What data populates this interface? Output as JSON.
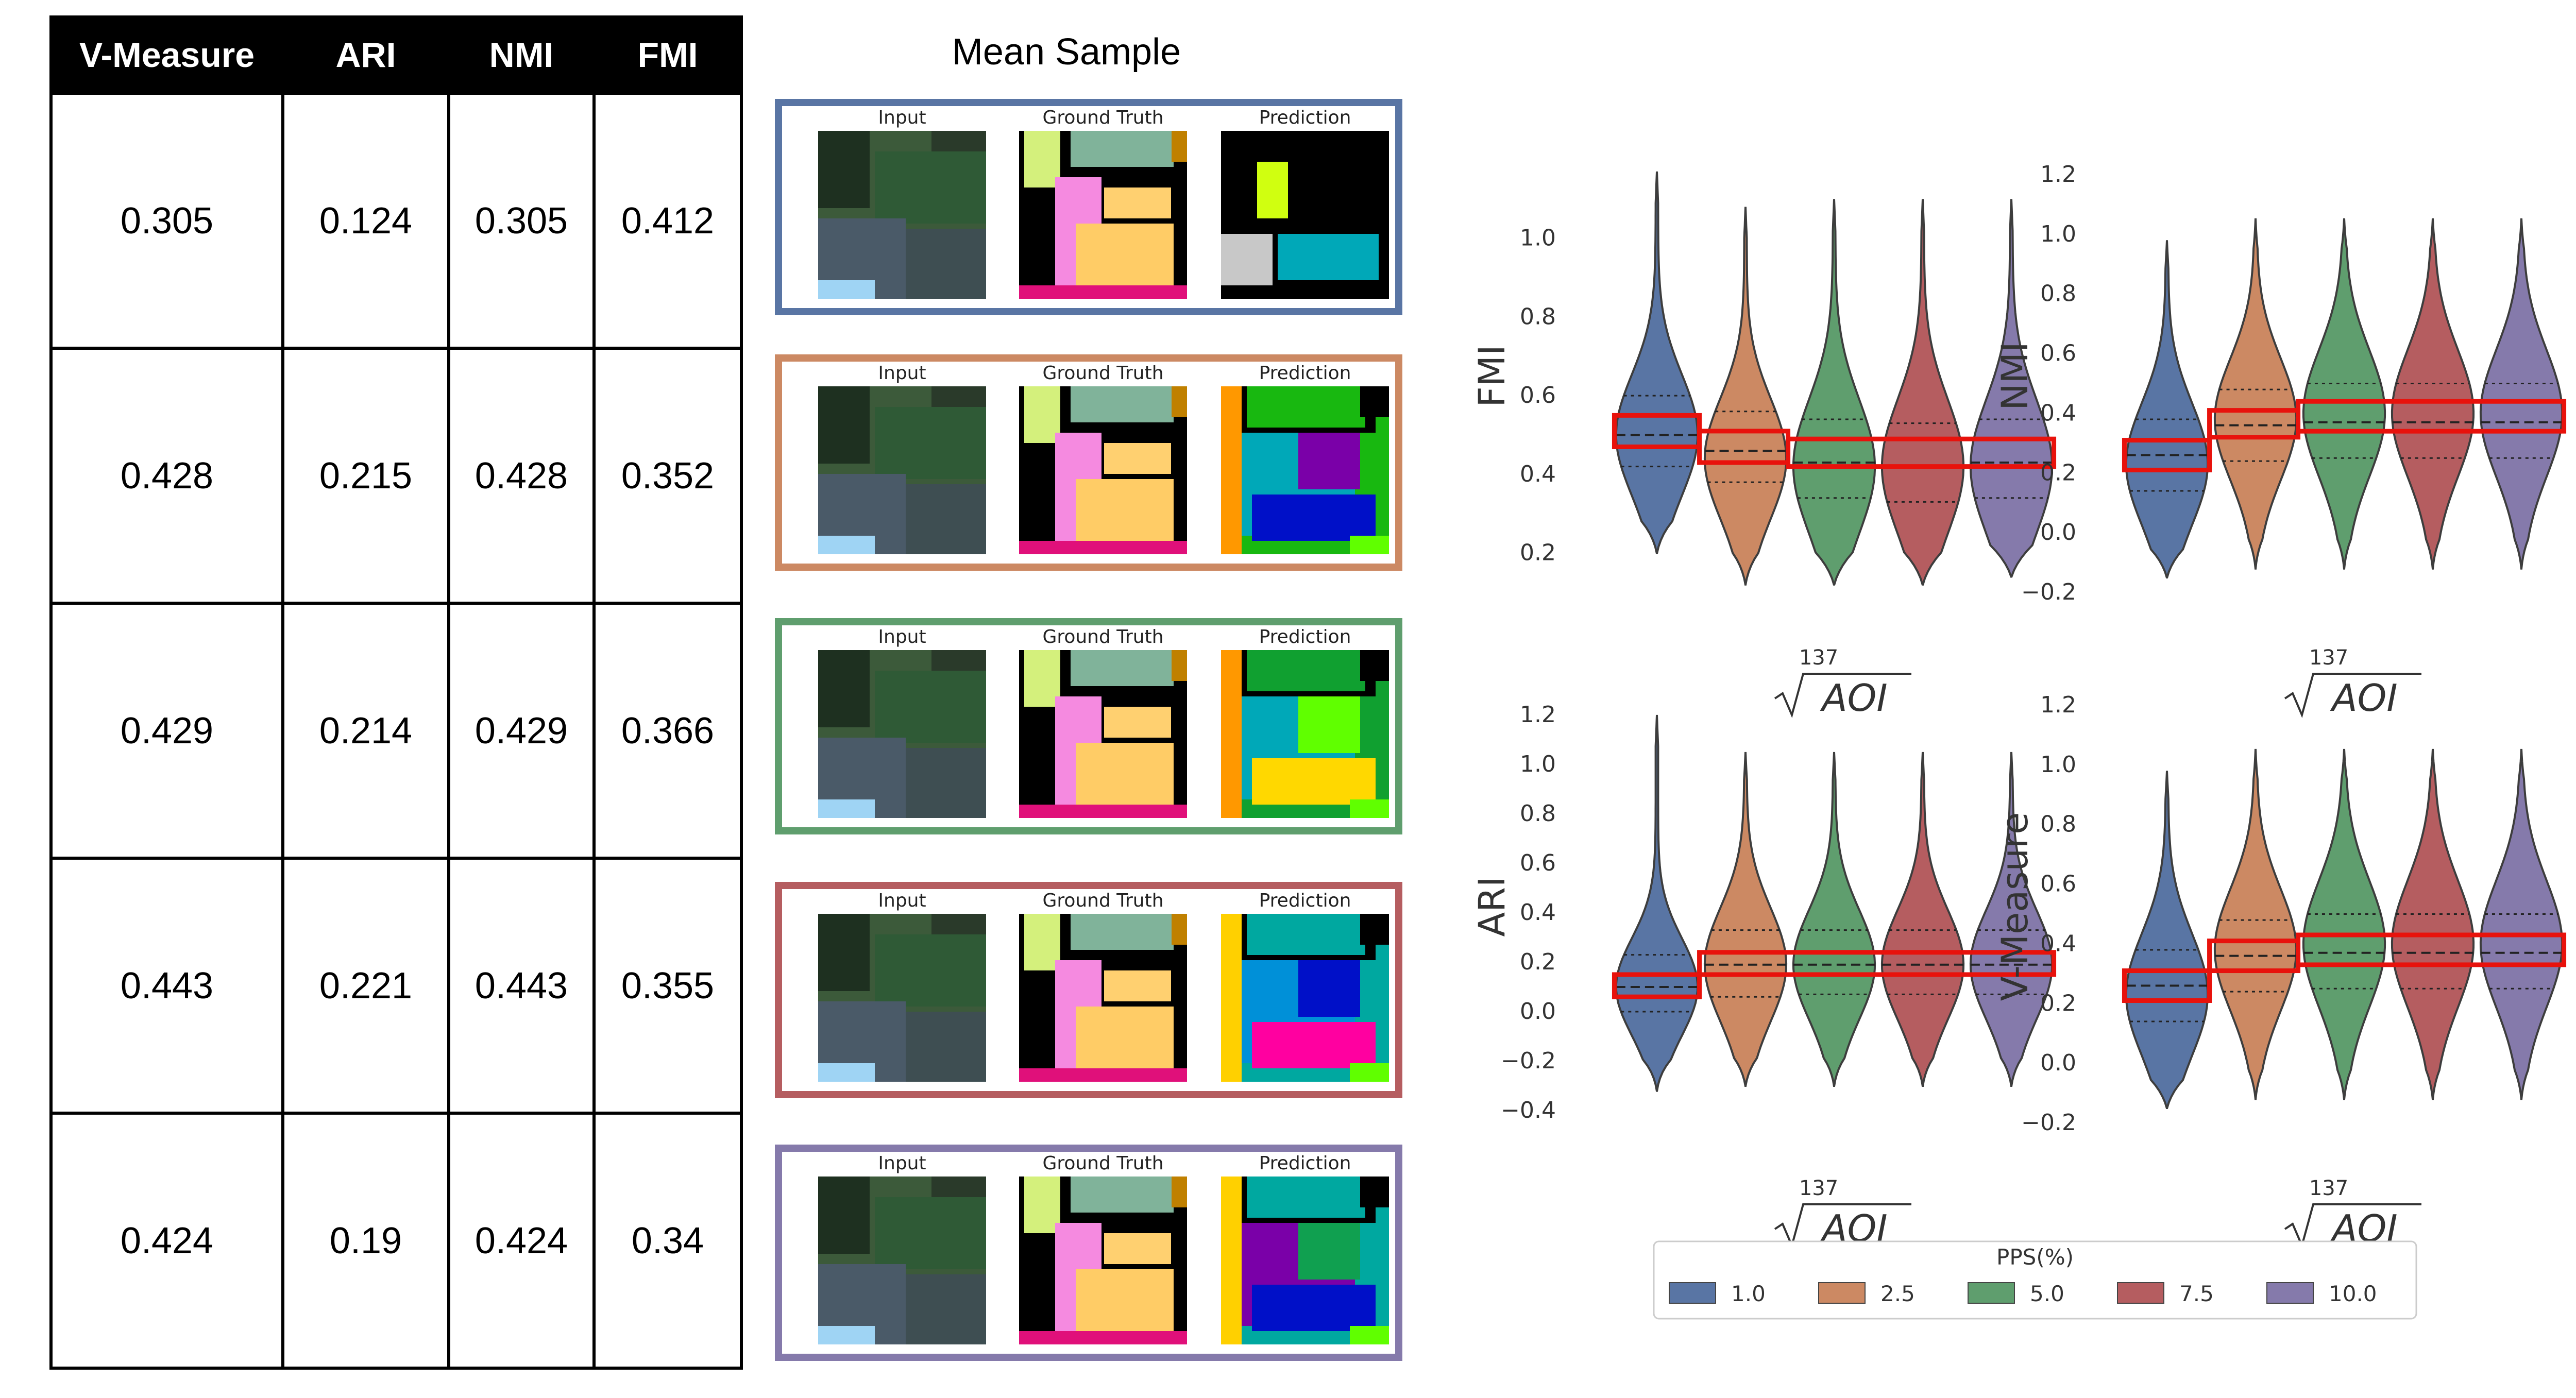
{
  "table": {
    "headers": [
      "V-Measure",
      "ARI",
      "NMI",
      "FMI"
    ],
    "rows": [
      [
        "0.305",
        "0.124",
        "0.305",
        "0.412"
      ],
      [
        "0.428",
        "0.215",
        "0.428",
        "0.352"
      ],
      [
        "0.429",
        "0.214",
        "0.429",
        "0.366"
      ],
      [
        "0.443",
        "0.221",
        "0.443",
        "0.355"
      ],
      [
        "0.424",
        "0.19",
        "0.424",
        "0.34"
      ]
    ]
  },
  "mean_sample": {
    "title": "Mean Sample",
    "panel_labels": [
      "Input",
      "Ground Truth",
      "Prediction"
    ],
    "border_colors": [
      "#5975a4",
      "#cc8963",
      "#5f9e6e",
      "#b55d60",
      "#857aab"
    ]
  },
  "colors": {
    "highlight": "#e8120c",
    "palette": [
      "#5975a4",
      "#cc8963",
      "#5f9e6e",
      "#b55d60",
      "#857aab"
    ]
  },
  "chart_data": [
    {
      "type": "violin",
      "ylabel": "FMI",
      "xlabel_index": "137",
      "xlabel_radicand": "AOI",
      "ylim": [
        0.1,
        1.2
      ],
      "yticks": [
        "0.2",
        "0.4",
        "0.6",
        "0.8",
        "1.0"
      ],
      "ytick_values": [
        0.2,
        0.4,
        0.6,
        0.8,
        1.0
      ],
      "series": [
        {
          "name": "1.0",
          "min": 0.2,
          "max": 1.17,
          "q1": 0.42,
          "median": 0.5,
          "q3": 0.6,
          "mode": 0.5
        },
        {
          "name": "2.5",
          "min": 0.12,
          "max": 1.08,
          "q1": 0.38,
          "median": 0.46,
          "q3": 0.56,
          "mode": 0.44
        },
        {
          "name": "5.0",
          "min": 0.12,
          "max": 1.1,
          "q1": 0.34,
          "median": 0.43,
          "q3": 0.54,
          "mode": 0.42
        },
        {
          "name": "7.5",
          "min": 0.12,
          "max": 1.1,
          "q1": 0.33,
          "median": 0.42,
          "q3": 0.53,
          "mode": 0.42
        },
        {
          "name": "10.0",
          "min": 0.14,
          "max": 1.1,
          "q1": 0.34,
          "median": 0.43,
          "q3": 0.54,
          "mode": 0.42
        }
      ],
      "highlight_ranges": [
        [
          0.47,
          0.55
        ],
        [
          0.43,
          0.51
        ],
        [
          0.42,
          0.49
        ]
      ]
    },
    {
      "type": "violin",
      "ylabel": "NMI",
      "xlabel_index": "137",
      "xlabel_radicand": "AOI",
      "ylim": [
        -0.2,
        1.25
      ],
      "yticks": [
        "−0.2",
        "0.0",
        "0.2",
        "0.4",
        "0.6",
        "0.8",
        "1.0",
        "1.2"
      ],
      "ytick_values": [
        -0.2,
        0.0,
        0.2,
        0.4,
        0.6,
        0.8,
        1.0,
        1.2
      ],
      "series": [
        {
          "name": "1.0",
          "min": -0.15,
          "max": 0.98,
          "q1": 0.14,
          "median": 0.26,
          "q3": 0.38,
          "mode": 0.23
        },
        {
          "name": "2.5",
          "min": -0.12,
          "max": 1.05,
          "q1": 0.24,
          "median": 0.36,
          "q3": 0.48,
          "mode": 0.38
        },
        {
          "name": "5.0",
          "min": -0.12,
          "max": 1.05,
          "q1": 0.25,
          "median": 0.37,
          "q3": 0.5,
          "mode": 0.4
        },
        {
          "name": "7.5",
          "min": -0.12,
          "max": 1.05,
          "q1": 0.25,
          "median": 0.37,
          "q3": 0.5,
          "mode": 0.4
        },
        {
          "name": "10.0",
          "min": -0.12,
          "max": 1.05,
          "q1": 0.25,
          "median": 0.37,
          "q3": 0.5,
          "mode": 0.4
        }
      ],
      "highlight_ranges": [
        [
          0.21,
          0.31
        ],
        [
          0.32,
          0.41
        ],
        [
          0.34,
          0.44
        ]
      ]
    },
    {
      "type": "violin",
      "ylabel": "ARI",
      "xlabel_index": "137",
      "xlabel_radicand": "AOI",
      "ylim": [
        -0.45,
        1.3
      ],
      "yticks": [
        "−0.4",
        "−0.2",
        "0.0",
        "0.2",
        "0.4",
        "0.6",
        "0.8",
        "1.0",
        "1.2"
      ],
      "ytick_values": [
        -0.4,
        -0.2,
        0.0,
        0.2,
        0.4,
        0.6,
        0.8,
        1.0,
        1.2
      ],
      "series": [
        {
          "name": "1.0",
          "min": -0.32,
          "max": 1.2,
          "q1": 0.0,
          "median": 0.1,
          "q3": 0.23,
          "mode": 0.1
        },
        {
          "name": "2.5",
          "min": -0.3,
          "max": 1.05,
          "q1": 0.06,
          "median": 0.19,
          "q3": 0.33,
          "mode": 0.19
        },
        {
          "name": "5.0",
          "min": -0.3,
          "max": 1.05,
          "q1": 0.07,
          "median": 0.19,
          "q3": 0.33,
          "mode": 0.19
        },
        {
          "name": "7.5",
          "min": -0.3,
          "max": 1.05,
          "q1": 0.07,
          "median": 0.19,
          "q3": 0.33,
          "mode": 0.19
        },
        {
          "name": "10.0",
          "min": -0.3,
          "max": 1.05,
          "q1": 0.07,
          "median": 0.19,
          "q3": 0.33,
          "mode": 0.19
        }
      ],
      "highlight_ranges": [
        [
          0.06,
          0.15
        ],
        [
          0.15,
          0.24
        ]
      ]
    },
    {
      "type": "violin",
      "ylabel": "V-Measure",
      "xlabel_index": "137",
      "xlabel_radicand": "AOI",
      "ylim": [
        -0.2,
        1.25
      ],
      "yticks": [
        "−0.2",
        "0.0",
        "0.2",
        "0.4",
        "0.6",
        "0.8",
        "1.0",
        "1.2"
      ],
      "ytick_values": [
        -0.2,
        0.0,
        0.2,
        0.4,
        0.6,
        0.8,
        1.0,
        1.2
      ],
      "series": [
        {
          "name": "1.0",
          "min": -0.15,
          "max": 0.98,
          "q1": 0.14,
          "median": 0.26,
          "q3": 0.38,
          "mode": 0.23
        },
        {
          "name": "2.5",
          "min": -0.12,
          "max": 1.05,
          "q1": 0.24,
          "median": 0.36,
          "q3": 0.48,
          "mode": 0.38
        },
        {
          "name": "5.0",
          "min": -0.12,
          "max": 1.05,
          "q1": 0.25,
          "median": 0.37,
          "q3": 0.5,
          "mode": 0.4
        },
        {
          "name": "7.5",
          "min": -0.12,
          "max": 1.05,
          "q1": 0.25,
          "median": 0.37,
          "q3": 0.5,
          "mode": 0.4
        },
        {
          "name": "10.0",
          "min": -0.12,
          "max": 1.05,
          "q1": 0.25,
          "median": 0.37,
          "q3": 0.5,
          "mode": 0.4
        }
      ],
      "highlight_ranges": [
        [
          0.21,
          0.31
        ],
        [
          0.31,
          0.41
        ],
        [
          0.33,
          0.43
        ]
      ]
    }
  ],
  "legend": {
    "title": "PPS(%)",
    "labels": [
      "1.0",
      "2.5",
      "5.0",
      "7.5",
      "10.0"
    ]
  }
}
